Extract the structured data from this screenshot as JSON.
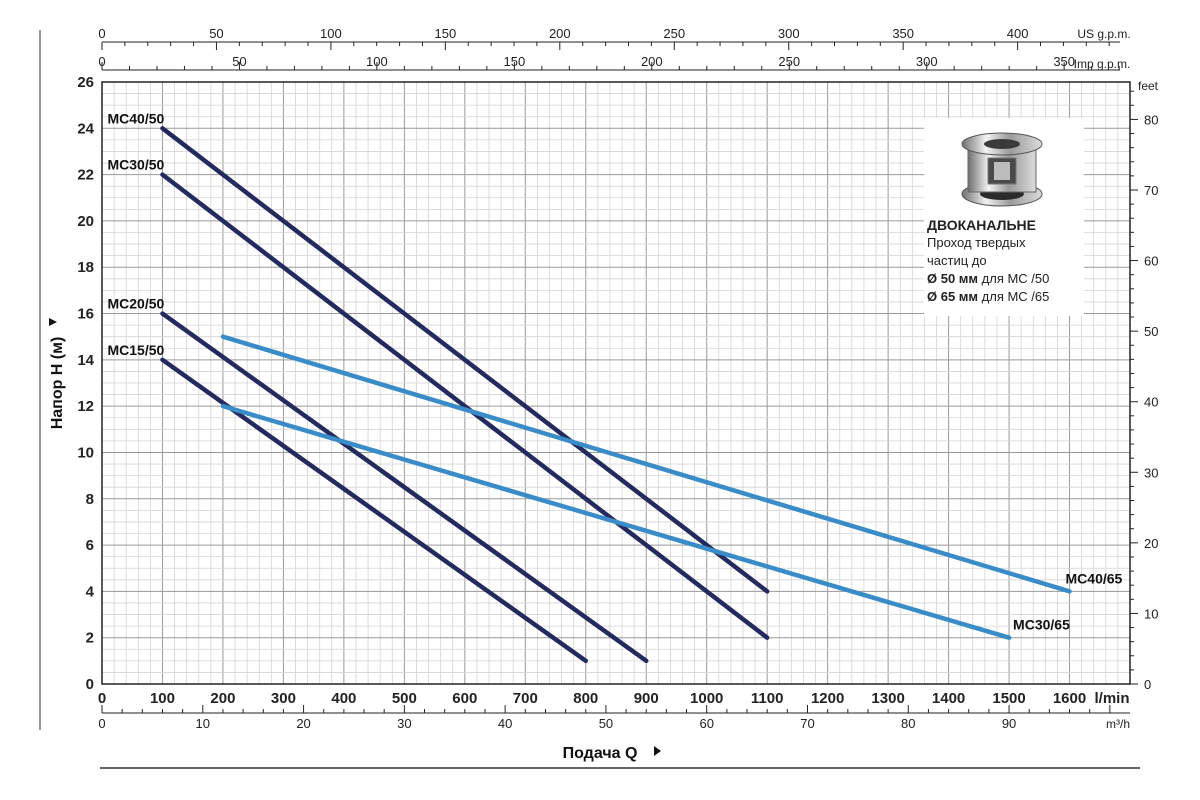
{
  "chart_data": {
    "type": "line",
    "x": {
      "label": "",
      "unit": "l/min",
      "min": 0,
      "max": 1700,
      "ticks": [
        0,
        100,
        200,
        300,
        400,
        500,
        600,
        700,
        800,
        900,
        1000,
        1100,
        1200,
        1300,
        1400,
        1500,
        1600
      ]
    },
    "y": {
      "label": "Напор H (м)",
      "min": 0,
      "max": 26,
      "ticks": [
        0,
        2,
        4,
        6,
        8,
        10,
        12,
        14,
        16,
        18,
        20,
        22,
        24,
        26
      ]
    },
    "y_right": {
      "unit": "feet",
      "ticks": [
        0,
        10,
        20,
        30,
        40,
        50,
        60,
        70,
        80
      ]
    },
    "x_top_us": {
      "unit": "US g.p.m.",
      "ticks": [
        0,
        50,
        100,
        150,
        200,
        250,
        300,
        350,
        400
      ]
    },
    "x_top_imp": {
      "unit": "Imp g.p.m.",
      "ticks": [
        0,
        50,
        100,
        150,
        200,
        250,
        300,
        350
      ]
    },
    "x_bottom2": {
      "unit": "m³/h",
      "ticks": [
        0,
        10,
        20,
        30,
        40,
        50,
        60,
        70,
        80,
        90
      ]
    },
    "x_title": "Подача Q",
    "grid": true,
    "series": [
      {
        "name": "MC40/50",
        "color": "#252a5e",
        "points": [
          [
            100,
            24
          ],
          [
            1100,
            4
          ]
        ]
      },
      {
        "name": "MC30/50",
        "color": "#252a5e",
        "points": [
          [
            100,
            22
          ],
          [
            1100,
            2
          ]
        ]
      },
      {
        "name": "MC20/50",
        "color": "#252a5e",
        "points": [
          [
            100,
            16
          ],
          [
            900,
            1
          ]
        ]
      },
      {
        "name": "MC15/50",
        "color": "#252a5e",
        "points": [
          [
            100,
            14
          ],
          [
            800,
            1
          ]
        ]
      },
      {
        "name": "MC40/65",
        "color": "#3a8cc9",
        "points": [
          [
            200,
            15
          ],
          [
            1600,
            4
          ]
        ]
      },
      {
        "name": "MC30/65",
        "color": "#3a8cc9",
        "points": [
          [
            200,
            12
          ],
          [
            1500,
            2
          ]
        ]
      }
    ]
  },
  "info": {
    "title": "ДВОКАНАЛЬНЕ",
    "line1": "Проход твердых",
    "line2": "частиц до",
    "line3_bold": "Ø 50 мм",
    "line3_rest": " для MC /50",
    "line4_bold": "Ø 65 мм",
    "line4_rest": " для MC /65"
  }
}
